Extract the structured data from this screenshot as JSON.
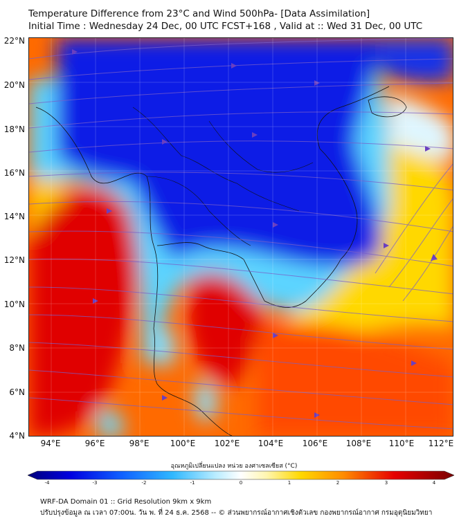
{
  "header": {
    "title_line1": "Temperature Difference from 23°C and Wind 500hPa- [Data Assimilation]",
    "title_line2": "Initial Time : Wednesday 24 Dec, 00 UTC FCST+168 , Valid at ::  Wed 31 Dec, 00 UTC"
  },
  "map": {
    "lat_labels": [
      "22°N",
      "20°N",
      "18°N",
      "16°N",
      "14°N",
      "12°N",
      "10°N",
      "8°N",
      "6°N",
      "4°N"
    ],
    "lon_labels": [
      "94°E",
      "96°E",
      "98°E",
      "100°E",
      "102°E",
      "104°E",
      "106°E",
      "108°E",
      "110°E",
      "112°E"
    ],
    "lat_range": [
      4,
      22
    ],
    "lon_range": [
      93,
      112.2
    ],
    "field": "temperature difference from 23°C",
    "overlay": "wind streamlines 500hPa",
    "colors": {
      "cold": "#0a1ee6",
      "cool": "#46c8ff",
      "neutral": "#ffffff",
      "warm": "#ffd400",
      "hot": "#e60000",
      "streamline": "#7a5fc8"
    }
  },
  "colorbar": {
    "title": "อุณหภูมิเปลี่ยนแปลง หน่วย องศาเซลเซียส (°C)",
    "ticks": [
      "-4",
      "-3",
      "-2",
      "-1",
      "0",
      "1",
      "2",
      "3",
      "4"
    ],
    "range": [
      -4,
      4
    ]
  },
  "footer": {
    "line1": "WRF-DA Domain 01 :: Grid Resolution 9km x 9km",
    "line2": "ปรับปรุงข้อมูล ณ เวลา 07:00น. วัน พ. ที่ 24 ธ.ค. 2568 -- © ส่วนพยากรณ์อากาศเชิงตัวเลข กองพยากรณ์อากาศ กรมอุตุนิยมวิทยา"
  }
}
